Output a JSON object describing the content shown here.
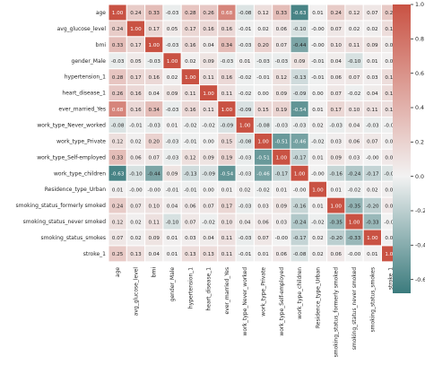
{
  "chart_data": {
    "type": "heatmap",
    "title": "",
    "xlabel": "",
    "ylabel": "",
    "labels": [
      "age",
      "avg_glucose_level",
      "bmi",
      "gender_Male",
      "hypertension_1",
      "heart_disease_1",
      "ever_married_Yes",
      "work_type_Never_worked",
      "work_type_Private",
      "work_type_Self-employed",
      "work_type_children",
      "Residence_type_Urban",
      "smoking_status_formerly smoked",
      "smoking_status_never smoked",
      "smoking_status_smokes",
      "stroke_1"
    ],
    "values": [
      [
        "1.00",
        "0.24",
        "0.33",
        "-0.03",
        "0.28",
        "0.26",
        "0.68",
        "-0.08",
        "0.12",
        "0.33",
        "-0.63",
        "0.01",
        "0.24",
        "0.12",
        "0.07",
        "0.25"
      ],
      [
        "0.24",
        "1.00",
        "0.17",
        "0.05",
        "0.17",
        "0.16",
        "0.16",
        "-0.01",
        "0.02",
        "0.06",
        "-0.10",
        "-0.00",
        "0.07",
        "0.02",
        "0.02",
        "0.13"
      ],
      [
        "0.33",
        "0.17",
        "1.00",
        "-0.03",
        "0.16",
        "0.04",
        "0.34",
        "-0.03",
        "0.20",
        "0.07",
        "-0.44",
        "-0.00",
        "0.10",
        "0.11",
        "0.09",
        "0.04"
      ],
      [
        "-0.03",
        "0.05",
        "-0.03",
        "1.00",
        "0.02",
        "0.09",
        "-0.03",
        "0.01",
        "-0.03",
        "-0.03",
        "0.09",
        "-0.01",
        "0.04",
        "-0.10",
        "0.01",
        "0.01"
      ],
      [
        "0.28",
        "0.17",
        "0.16",
        "0.02",
        "1.00",
        "0.11",
        "0.16",
        "-0.02",
        "-0.01",
        "0.12",
        "-0.13",
        "-0.01",
        "0.06",
        "0.07",
        "0.03",
        "0.13"
      ],
      [
        "0.26",
        "0.16",
        "0.04",
        "0.09",
        "0.11",
        "1.00",
        "0.11",
        "-0.02",
        "0.00",
        "0.09",
        "-0.09",
        "0.00",
        "0.07",
        "-0.02",
        "0.04",
        "0.13"
      ],
      [
        "0.68",
        "0.16",
        "0.34",
        "-0.03",
        "0.16",
        "0.11",
        "1.00",
        "-0.09",
        "0.15",
        "0.19",
        "-0.54",
        "0.01",
        "0.17",
        "0.10",
        "0.11",
        "0.11"
      ],
      [
        "-0.08",
        "-0.01",
        "-0.03",
        "0.01",
        "-0.02",
        "-0.02",
        "-0.09",
        "1.00",
        "-0.08",
        "-0.03",
        "-0.03",
        "0.02",
        "-0.03",
        "0.04",
        "-0.03",
        "-0.01"
      ],
      [
        "0.12",
        "0.02",
        "0.20",
        "-0.03",
        "-0.01",
        "0.00",
        "0.15",
        "-0.08",
        "1.00",
        "-0.51",
        "-0.46",
        "-0.02",
        "0.03",
        "0.06",
        "0.07",
        "0.01"
      ],
      [
        "0.33",
        "0.06",
        "0.07",
        "-0.03",
        "0.12",
        "0.09",
        "0.19",
        "-0.03",
        "-0.51",
        "1.00",
        "-0.17",
        "0.01",
        "0.09",
        "0.03",
        "-0.00",
        "0.06"
      ],
      [
        "-0.63",
        "-0.10",
        "-0.44",
        "0.09",
        "-0.13",
        "-0.09",
        "-0.54",
        "-0.03",
        "-0.46",
        "-0.17",
        "1.00",
        "-0.00",
        "-0.16",
        "-0.24",
        "-0.17",
        "-0.08"
      ],
      [
        "0.01",
        "-0.00",
        "-0.00",
        "-0.01",
        "-0.01",
        "0.00",
        "0.01",
        "0.02",
        "-0.02",
        "0.01",
        "-0.00",
        "1.00",
        "0.01",
        "-0.02",
        "0.02",
        "0.02"
      ],
      [
        "0.24",
        "0.07",
        "0.10",
        "0.04",
        "0.06",
        "0.07",
        "0.17",
        "-0.03",
        "0.03",
        "0.09",
        "-0.16",
        "0.01",
        "1.00",
        "-0.35",
        "-0.20",
        "0.06"
      ],
      [
        "0.12",
        "0.02",
        "0.11",
        "-0.10",
        "0.07",
        "-0.02",
        "0.10",
        "0.04",
        "0.06",
        "0.03",
        "-0.24",
        "-0.02",
        "-0.35",
        "1.00",
        "-0.33",
        "-0.00"
      ],
      [
        "0.07",
        "0.02",
        "0.09",
        "0.01",
        "0.03",
        "0.04",
        "0.11",
        "-0.03",
        "0.07",
        "-0.00",
        "-0.17",
        "0.02",
        "-0.20",
        "-0.33",
        "1.00",
        "0.01"
      ],
      [
        "0.25",
        "0.13",
        "0.04",
        "0.01",
        "0.13",
        "0.13",
        "0.11",
        "-0.01",
        "0.01",
        "0.06",
        "-0.08",
        "0.02",
        "0.06",
        "-0.00",
        "0.01",
        "1.00"
      ]
    ],
    "colorbar": {
      "min": -0.68,
      "max": 1.0,
      "ticks": [
        "1.0",
        "0.8",
        "0.6",
        "0.4",
        "0.2",
        "0.0",
        "-0.2",
        "-0.4",
        "-0.6"
      ]
    },
    "colors": {
      "negative": "#3b7b7d",
      "neutral": "#f2f2f2",
      "positive": "#c95243",
      "cell_border": "#ffffff",
      "text_dark": "#262626",
      "text_light": "#ffffff"
    },
    "grid": false,
    "legend": "colorbar-right"
  }
}
